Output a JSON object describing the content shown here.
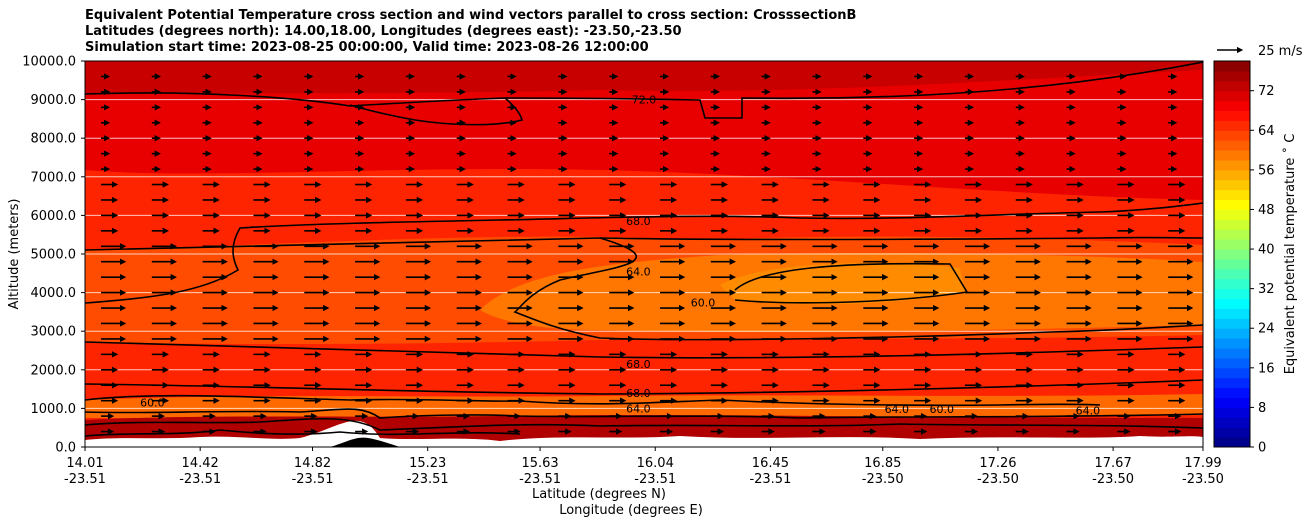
{
  "title_lines": [
    "Equivalent Potential Temperature cross section and wind vectors parallel to cross section: CrosssectionB",
    "Latitudes (degrees north): 14.00,18.00, Longitudes (degrees east): -23.50,-23.50",
    "Simulation start time: 2023-08-25 00:00:00, Valid time: 2023-08-26 12:00:00"
  ],
  "chart_data": {
    "type": "heatmap",
    "subtype": "filled contour cross section with wind vectors",
    "xlabel_lines": [
      "Latitude (degrees N)",
      "Longitude (degrees E)"
    ],
    "ylabel": "Altitude (meters)",
    "colorbar_label": "Equivalent potential temperature ˚ C",
    "colorbar_ticks": [
      "0",
      "8",
      "16",
      "24",
      "32",
      "40",
      "48",
      "56",
      "64",
      "72"
    ],
    "colorbar_range": [
      0,
      78
    ],
    "colormap": "jet",
    "quiver_key": "25 m/s",
    "y_ticks": [
      "0.0",
      "1000.0",
      "2000.0",
      "3000.0",
      "4000.0",
      "5000.0",
      "6000.0",
      "7000.0",
      "8000.0",
      "9000.0",
      "10000.0"
    ],
    "ylim": [
      0,
      10000
    ],
    "x_ticks": [
      {
        "lat": "14.01",
        "lon": "-23.51"
      },
      {
        "lat": "14.42",
        "lon": "-23.51"
      },
      {
        "lat": "14.82",
        "lon": "-23.51"
      },
      {
        "lat": "15.23",
        "lon": "-23.51"
      },
      {
        "lat": "15.63",
        "lon": "-23.51"
      },
      {
        "lat": "16.04",
        "lon": "-23.51"
      },
      {
        "lat": "16.45",
        "lon": "-23.51"
      },
      {
        "lat": "16.85",
        "lon": "-23.50"
      },
      {
        "lat": "17.26",
        "lon": "-23.50"
      },
      {
        "lat": "17.67",
        "lon": "-23.50"
      },
      {
        "lat": "17.99",
        "lon": "-23.50"
      }
    ],
    "contour_labels": [
      {
        "text": "72.0",
        "lat": 16.0,
        "alt": 9000
      },
      {
        "text": "68.0",
        "lat": 15.98,
        "alt": 5850
      },
      {
        "text": "64.0",
        "lat": 15.98,
        "alt": 4550
      },
      {
        "text": "60.0",
        "lat": 16.21,
        "alt": 3750
      },
      {
        "text": "68.0",
        "lat": 15.98,
        "alt": 2150
      },
      {
        "text": "68.0",
        "lat": 15.98,
        "alt": 1400
      },
      {
        "text": "64.0",
        "lat": 15.98,
        "alt": 1000
      },
      {
        "text": "64.0",
        "lat": 16.9,
        "alt": 980
      },
      {
        "text": "60.0",
        "lat": 17.06,
        "alt": 980
      },
      {
        "text": "60.0",
        "lat": 14.25,
        "alt": 1150
      },
      {
        "text": "64.0",
        "lat": 17.58,
        "alt": 950
      }
    ],
    "wind_summary": "Wind vectors point toward increasing latitude at nearly all levels; strongest between 2500 and 5500 m."
  }
}
